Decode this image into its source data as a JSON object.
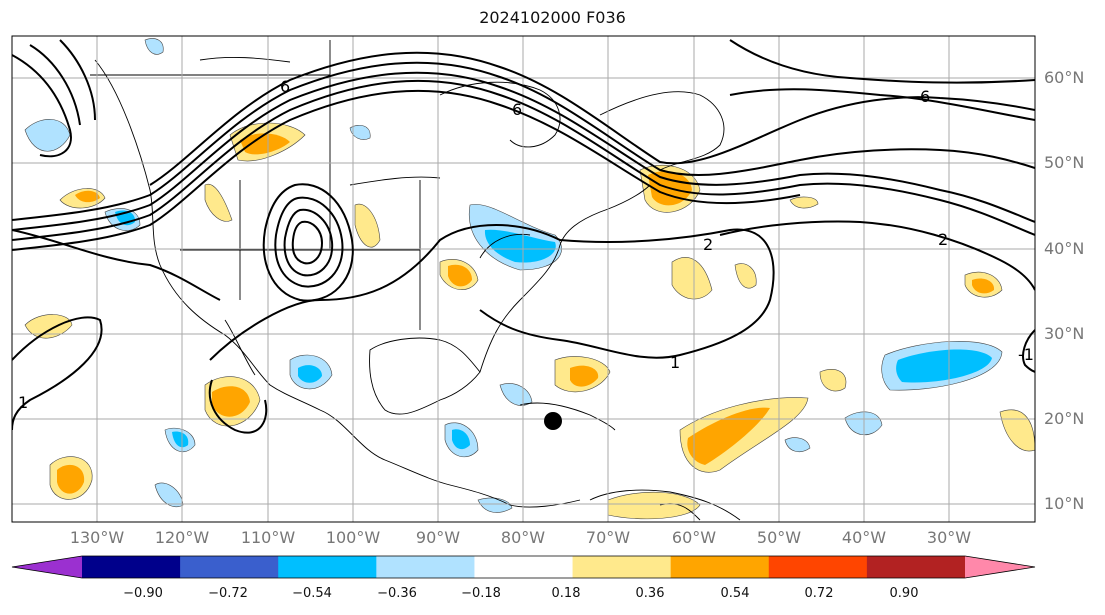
{
  "title": "2024102000 F036",
  "lat_labels": [
    "60°N",
    "50°N",
    "40°N",
    "30°N",
    "20°N",
    "10°N"
  ],
  "lon_labels": [
    "130°W",
    "120°W",
    "110°W",
    "100°W",
    "90°W",
    "80°W",
    "70°W",
    "60°W",
    "50°W",
    "40°W",
    "30°W"
  ],
  "contour_labels": [
    "6",
    "6",
    "2",
    "1",
    "1",
    "-1",
    "6",
    "2"
  ],
  "colorbar": {
    "ticks": [
      "−0.90",
      "−0.72",
      "−0.54",
      "−0.36",
      "−0.18",
      "0.18",
      "0.36",
      "0.54",
      "0.72",
      "0.90"
    ],
    "colors": [
      "#9b30d0",
      "#00008b",
      "#3a5fcd",
      "#00bfff",
      "#b0e2ff",
      "#ffffff",
      "#ffe98c",
      "#ffa500",
      "#ff4500",
      "#b22222",
      "#ff88aa"
    ]
  }
}
